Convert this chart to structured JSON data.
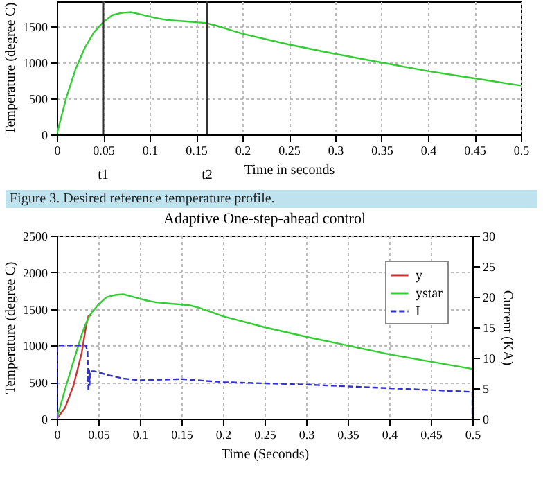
{
  "chart_data": [
    {
      "type": "line",
      "xlabel": "Time in seconds",
      "ylabel": "Temperature (degree C)",
      "xlim": [
        0,
        0.5
      ],
      "ylim": [
        0,
        1850
      ],
      "xticks": [
        0,
        0.05,
        0.1,
        0.15,
        0.2,
        0.25,
        0.3,
        0.35,
        0.4,
        0.45,
        0.5
      ],
      "yticks": [
        0,
        500,
        1000,
        1500
      ],
      "grid": true,
      "series": [
        {
          "color": "#33cc33",
          "x": [
            0,
            0.005,
            0.01,
            0.02,
            0.03,
            0.04,
            0.05,
            0.06,
            0.07,
            0.08,
            0.09,
            0.1,
            0.11,
            0.12,
            0.13,
            0.14,
            0.15,
            0.16,
            0.17,
            0.18,
            0.2,
            0.25,
            0.3,
            0.35,
            0.4,
            0.45,
            0.5
          ],
          "values": [
            0,
            250,
            500,
            900,
            1200,
            1420,
            1560,
            1660,
            1690,
            1700,
            1670,
            1640,
            1610,
            1590,
            1580,
            1570,
            1560,
            1550,
            1520,
            1480,
            1400,
            1250,
            1120,
            1000,
            880,
            780,
            680
          ]
        }
      ],
      "ref_lines": [
        {
          "axis": "x",
          "value": 0.05,
          "label": "t1",
          "color": "#333333"
        },
        {
          "axis": "x",
          "value": 0.162,
          "label": "t2",
          "color": "#333333"
        }
      ],
      "annotations": [
        "Figure 3. Desired reference temperature profile."
      ]
    },
    {
      "type": "line",
      "title": "Adaptive One-step-ahead control",
      "xlabel": "Time (Seconds)",
      "ylabel": "Temperature (degree C)",
      "y2label": "Current (KA)",
      "xlim": [
        0,
        0.5
      ],
      "ylim": [
        0,
        2500
      ],
      "y2lim": [
        0,
        30
      ],
      "xticks": [
        0,
        0.05,
        0.1,
        0.15,
        0.2,
        0.25,
        0.3,
        0.35,
        0.4,
        0.45,
        0.5
      ],
      "yticks": [
        0,
        500,
        1000,
        1500,
        2000,
        2500
      ],
      "y2ticks": [
        0,
        5,
        10,
        15,
        20,
        25,
        30
      ],
      "grid": true,
      "legend": "top right",
      "series": [
        {
          "name": "y",
          "color": "#cc3333",
          "x": [
            0,
            0.01,
            0.02,
            0.03,
            0.035,
            0.038,
            0.042
          ],
          "values": [
            0,
            150,
            450,
            900,
            1250,
            1400,
            1420
          ]
        },
        {
          "name": "ystar",
          "color": "#33cc33",
          "x": [
            0,
            0.01,
            0.02,
            0.03,
            0.035,
            0.04,
            0.05,
            0.06,
            0.07,
            0.08,
            0.09,
            0.1,
            0.11,
            0.12,
            0.13,
            0.14,
            0.15,
            0.16,
            0.17,
            0.18,
            0.2,
            0.25,
            0.3,
            0.35,
            0.4,
            0.45,
            0.5
          ],
          "values": [
            0,
            400,
            780,
            1150,
            1300,
            1420,
            1560,
            1660,
            1690,
            1700,
            1670,
            1640,
            1610,
            1590,
            1580,
            1570,
            1560,
            1550,
            1520,
            1480,
            1400,
            1250,
            1120,
            1000,
            880,
            780,
            680
          ]
        },
        {
          "name": "I",
          "color": "#3333cc",
          "axis": "y2",
          "line_style": "dashed",
          "x": [
            0,
            0.0005,
            0.035,
            0.037,
            0.038,
            0.039,
            0.0395,
            0.04,
            0.045,
            0.06,
            0.08,
            0.1,
            0.15,
            0.2,
            0.3,
            0.4,
            0.5,
            0.5
          ],
          "values": [
            0,
            12,
            12,
            11,
            4.5,
            8,
            5.5,
            7.8,
            7.8,
            7.2,
            6.6,
            6.3,
            6.5,
            6,
            5.6,
            5,
            4.4,
            0
          ]
        }
      ]
    }
  ]
}
